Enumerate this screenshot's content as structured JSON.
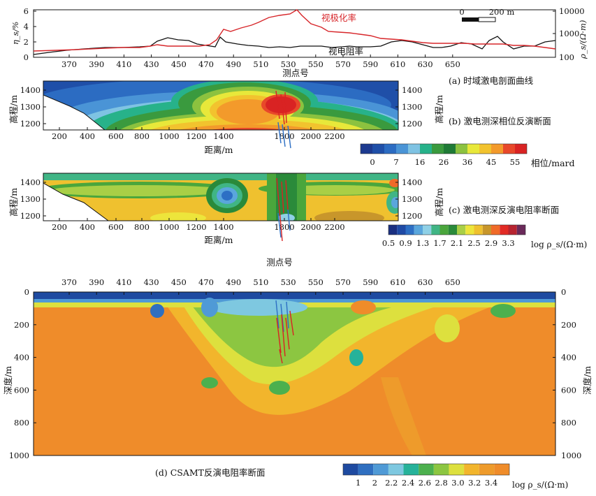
{
  "panel_a": {
    "caption": "(a) 时域激电剖面曲线",
    "y_left_label": "η_s/%",
    "y_right_label": "ρ_s/(Ω·m)",
    "x_label": "测点号",
    "series_ip_label": "视极化率",
    "series_res_label": "视电阻率",
    "scale_bar": {
      "zero": "0",
      "end": "200 m"
    },
    "x_ticks": [
      "370",
      "390",
      "410",
      "430",
      "450",
      "470",
      "490",
      "510",
      "530",
      "550",
      "570",
      "590",
      "610",
      "630",
      "650"
    ],
    "y_left_ticks": [
      "0",
      "2",
      "4",
      "6"
    ],
    "y_right_ticks": [
      "100",
      "1000",
      "10000"
    ],
    "colors": {
      "ip": "#d7262a",
      "res": "#111111"
    }
  },
  "panel_b": {
    "caption": "(b) 激电测深相位反演断面",
    "y_label": "高程/m",
    "x_label": "距离/m",
    "x_ticks": [
      "200",
      "400",
      "600",
      "800",
      "1000",
      "1200",
      "1400",
      "1800",
      "2000",
      "2200"
    ],
    "y_ticks": [
      "1400",
      "1300",
      "1200"
    ],
    "legend_title": "相位/mard",
    "legend_ticks": [
      "0",
      "7",
      "16",
      "26",
      "36",
      "45",
      "55"
    ],
    "legend_colors": [
      "#1c3a8f",
      "#1f4fa8",
      "#2c6cc2",
      "#4a94d6",
      "#7fc3e3",
      "#27b28a",
      "#3a9a3e",
      "#1f7a36",
      "#8cc23f",
      "#e8e83a",
      "#f2c32e",
      "#f39a2b",
      "#e8482a",
      "#d92323"
    ]
  },
  "panel_c": {
    "caption": "(c) 激电测深反演电阻率断面",
    "y_label": "高程/m",
    "x_label": "距离/m",
    "x_ticks": [
      "200",
      "400",
      "600",
      "800",
      "1000",
      "1200",
      "1400",
      "1800",
      "2000",
      "2200"
    ],
    "y_ticks": [
      "1400",
      "1300",
      "1200"
    ],
    "legend_ticks": [
      "0.5",
      "0.9",
      "1.3",
      "1.7",
      "2.1",
      "2.5",
      "2.9",
      "3.3"
    ],
    "legend_unit": "log ρ_s/(Ω·m)",
    "legend_colors": [
      "#1a2f80",
      "#1f4aa5",
      "#2d6fc4",
      "#5aa6dc",
      "#8fd0e6",
      "#40b585",
      "#4aa63c",
      "#2a8a3a",
      "#a9cf46",
      "#ede53b",
      "#efc12f",
      "#c8962b",
      "#f06a28",
      "#e22b25",
      "#b72430",
      "#6a2a5a"
    ],
    "bottom_label": "测点号"
  },
  "panel_d": {
    "caption": "(d) CSAMT反演电阻率断面",
    "y_label": "深度/m",
    "x_ticks": [
      "370",
      "390",
      "410",
      "430",
      "450",
      "470",
      "490",
      "510",
      "530",
      "550",
      "570",
      "590",
      "610",
      "630",
      "650"
    ],
    "y_ticks": [
      "0",
      "200",
      "400",
      "600",
      "800",
      "1000"
    ],
    "legend_ticks": [
      "1",
      "2",
      "2.2",
      "2.4",
      "2.6",
      "2.8",
      "3.0",
      "3.2",
      "3.4"
    ],
    "legend_unit": "log ρ_s/(Ω·m)",
    "legend_colors": [
      "#1e4aa0",
      "#2f6fc0",
      "#4f9ad6",
      "#7ec8e0",
      "#26b29a",
      "#4cb04e",
      "#8cc641",
      "#dde03e",
      "#f2b52c",
      "#ee9b2b",
      "#ef8c2a"
    ]
  }
}
